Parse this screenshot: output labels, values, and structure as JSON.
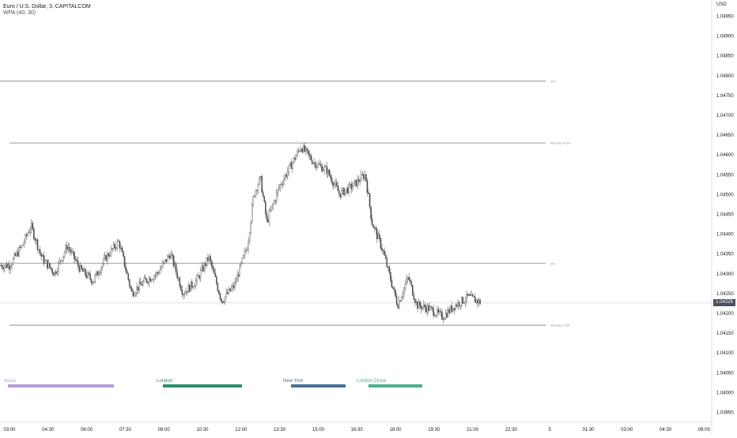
{
  "header": {
    "title": "Euro / U.S. Dollar, 3, CAPITALCOM",
    "indicator": "WPA (40, 30)"
  },
  "currency": "USD",
  "last_price": "1.04226",
  "price_axis": [
    "1.04950",
    "1.04900",
    "1.04850",
    "1.04800",
    "1.04750",
    "1.04700",
    "1.04650",
    "1.04600",
    "1.04550",
    "1.04500",
    "1.04450",
    "1.04400",
    "1.04350",
    "1.04300",
    "1.04250",
    "1.04200",
    "1.04150",
    "1.04100",
    "1.04050",
    "1.04000",
    "1.03950"
  ],
  "time_axis": [
    "03:00",
    "04:30",
    "06:00",
    "07:30",
    "09:00",
    "10:30",
    "12:00",
    "13:30",
    "15:00",
    "16:30",
    "18:00",
    "19:30",
    "21:00",
    "22:30",
    "5",
    "01:30",
    "03:00",
    "04:30",
    "06:00"
  ],
  "levels": [
    {
      "label": "WO",
      "price": 1.04785
    },
    {
      "label": "Monday HIGH",
      "price": 1.04629
    },
    {
      "label": "MO",
      "price": 1.04325
    },
    {
      "label": "Monday LOW",
      "price": 1.04169
    }
  ],
  "sessions": [
    {
      "name": "Asian",
      "color": "#b39ddb"
    },
    {
      "name": "London",
      "color": "#2e8b6f"
    },
    {
      "name": "New York",
      "color": "#4a6f95"
    },
    {
      "name": "London Close",
      "color": "#4caf8c"
    }
  ],
  "chart_data": {
    "type": "candlestick",
    "symbol": "Euro / U.S. Dollar",
    "interval": "3",
    "exchange": "CAPITALCOM",
    "ylim": [
      1.0394,
      1.0496
    ],
    "close_path": [
      {
        "x": "03:00",
        "y": 1.0432
      },
      {
        "x": "03:30",
        "y": 1.0437
      },
      {
        "x": "03:50",
        "y": 1.0442
      },
      {
        "x": "04:15",
        "y": 1.0434
      },
      {
        "x": "04:45",
        "y": 1.043
      },
      {
        "x": "05:15",
        "y": 1.0437
      },
      {
        "x": "05:45",
        "y": 1.0431
      },
      {
        "x": "06:15",
        "y": 1.0428
      },
      {
        "x": "06:45",
        "y": 1.0434
      },
      {
        "x": "07:15",
        "y": 1.0438
      },
      {
        "x": "07:45",
        "y": 1.0425
      },
      {
        "x": "08:15",
        "y": 1.0428
      },
      {
        "x": "08:45",
        "y": 1.043
      },
      {
        "x": "09:15",
        "y": 1.0435
      },
      {
        "x": "09:45",
        "y": 1.0425
      },
      {
        "x": "10:15",
        "y": 1.0428
      },
      {
        "x": "10:45",
        "y": 1.0434
      },
      {
        "x": "11:15",
        "y": 1.0423
      },
      {
        "x": "11:45",
        "y": 1.0427
      },
      {
        "x": "12:15",
        "y": 1.0437
      },
      {
        "x": "12:30",
        "y": 1.045
      },
      {
        "x": "12:45",
        "y": 1.0454
      },
      {
        "x": "13:00",
        "y": 1.0443
      },
      {
        "x": "13:30",
        "y": 1.0452
      },
      {
        "x": "14:00",
        "y": 1.0458
      },
      {
        "x": "14:20",
        "y": 1.0462
      },
      {
        "x": "14:50",
        "y": 1.0458
      },
      {
        "x": "15:20",
        "y": 1.0456
      },
      {
        "x": "15:50",
        "y": 1.045
      },
      {
        "x": "16:20",
        "y": 1.0452
      },
      {
        "x": "16:50",
        "y": 1.0455
      },
      {
        "x": "17:05",
        "y": 1.0443
      },
      {
        "x": "17:30",
        "y": 1.0436
      },
      {
        "x": "17:50",
        "y": 1.0428
      },
      {
        "x": "18:05",
        "y": 1.0422
      },
      {
        "x": "18:30",
        "y": 1.0429
      },
      {
        "x": "18:50",
        "y": 1.0422
      },
      {
        "x": "19:20",
        "y": 1.0421
      },
      {
        "x": "19:50",
        "y": 1.0419
      },
      {
        "x": "20:20",
        "y": 1.0422
      },
      {
        "x": "20:50",
        "y": 1.0424
      },
      {
        "x": "21:20",
        "y": 1.04226
      }
    ]
  }
}
